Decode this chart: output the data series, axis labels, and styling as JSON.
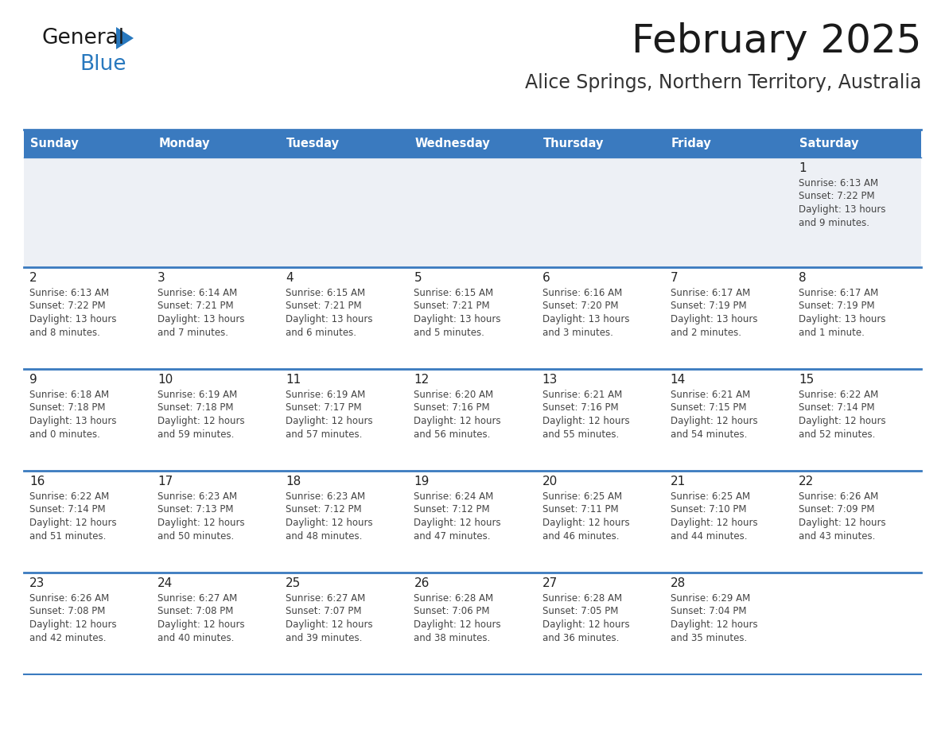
{
  "title": "February 2025",
  "subtitle": "Alice Springs, Northern Territory, Australia",
  "days_of_week": [
    "Sunday",
    "Monday",
    "Tuesday",
    "Wednesday",
    "Thursday",
    "Friday",
    "Saturday"
  ],
  "header_bg": "#3a7abf",
  "header_text": "#ffffff",
  "row0_bg": "#edf0f5",
  "row_bg_white": "#ffffff",
  "border_color": "#3a7abf",
  "cell_text_color": "#444444",
  "day_num_color": "#222222",
  "title_color": "#1a1a1a",
  "subtitle_color": "#333333",
  "calendar_data": [
    {
      "day": 1,
      "col": 6,
      "row": 0,
      "sunrise": "6:13 AM",
      "sunset": "7:22 PM",
      "daylight_h": "13 hours",
      "daylight_m": "and 9 minutes."
    },
    {
      "day": 2,
      "col": 0,
      "row": 1,
      "sunrise": "6:13 AM",
      "sunset": "7:22 PM",
      "daylight_h": "13 hours",
      "daylight_m": "and 8 minutes."
    },
    {
      "day": 3,
      "col": 1,
      "row": 1,
      "sunrise": "6:14 AM",
      "sunset": "7:21 PM",
      "daylight_h": "13 hours",
      "daylight_m": "and 7 minutes."
    },
    {
      "day": 4,
      "col": 2,
      "row": 1,
      "sunrise": "6:15 AM",
      "sunset": "7:21 PM",
      "daylight_h": "13 hours",
      "daylight_m": "and 6 minutes."
    },
    {
      "day": 5,
      "col": 3,
      "row": 1,
      "sunrise": "6:15 AM",
      "sunset": "7:21 PM",
      "daylight_h": "13 hours",
      "daylight_m": "and 5 minutes."
    },
    {
      "day": 6,
      "col": 4,
      "row": 1,
      "sunrise": "6:16 AM",
      "sunset": "7:20 PM",
      "daylight_h": "13 hours",
      "daylight_m": "and 3 minutes."
    },
    {
      "day": 7,
      "col": 5,
      "row": 1,
      "sunrise": "6:17 AM",
      "sunset": "7:19 PM",
      "daylight_h": "13 hours",
      "daylight_m": "and 2 minutes."
    },
    {
      "day": 8,
      "col": 6,
      "row": 1,
      "sunrise": "6:17 AM",
      "sunset": "7:19 PM",
      "daylight_h": "13 hours",
      "daylight_m": "and 1 minute."
    },
    {
      "day": 9,
      "col": 0,
      "row": 2,
      "sunrise": "6:18 AM",
      "sunset": "7:18 PM",
      "daylight_h": "13 hours",
      "daylight_m": "and 0 minutes."
    },
    {
      "day": 10,
      "col": 1,
      "row": 2,
      "sunrise": "6:19 AM",
      "sunset": "7:18 PM",
      "daylight_h": "12 hours",
      "daylight_m": "and 59 minutes."
    },
    {
      "day": 11,
      "col": 2,
      "row": 2,
      "sunrise": "6:19 AM",
      "sunset": "7:17 PM",
      "daylight_h": "12 hours",
      "daylight_m": "and 57 minutes."
    },
    {
      "day": 12,
      "col": 3,
      "row": 2,
      "sunrise": "6:20 AM",
      "sunset": "7:16 PM",
      "daylight_h": "12 hours",
      "daylight_m": "and 56 minutes."
    },
    {
      "day": 13,
      "col": 4,
      "row": 2,
      "sunrise": "6:21 AM",
      "sunset": "7:16 PM",
      "daylight_h": "12 hours",
      "daylight_m": "and 55 minutes."
    },
    {
      "day": 14,
      "col": 5,
      "row": 2,
      "sunrise": "6:21 AM",
      "sunset": "7:15 PM",
      "daylight_h": "12 hours",
      "daylight_m": "and 54 minutes."
    },
    {
      "day": 15,
      "col": 6,
      "row": 2,
      "sunrise": "6:22 AM",
      "sunset": "7:14 PM",
      "daylight_h": "12 hours",
      "daylight_m": "and 52 minutes."
    },
    {
      "day": 16,
      "col": 0,
      "row": 3,
      "sunrise": "6:22 AM",
      "sunset": "7:14 PM",
      "daylight_h": "12 hours",
      "daylight_m": "and 51 minutes."
    },
    {
      "day": 17,
      "col": 1,
      "row": 3,
      "sunrise": "6:23 AM",
      "sunset": "7:13 PM",
      "daylight_h": "12 hours",
      "daylight_m": "and 50 minutes."
    },
    {
      "day": 18,
      "col": 2,
      "row": 3,
      "sunrise": "6:23 AM",
      "sunset": "7:12 PM",
      "daylight_h": "12 hours",
      "daylight_m": "and 48 minutes."
    },
    {
      "day": 19,
      "col": 3,
      "row": 3,
      "sunrise": "6:24 AM",
      "sunset": "7:12 PM",
      "daylight_h": "12 hours",
      "daylight_m": "and 47 minutes."
    },
    {
      "day": 20,
      "col": 4,
      "row": 3,
      "sunrise": "6:25 AM",
      "sunset": "7:11 PM",
      "daylight_h": "12 hours",
      "daylight_m": "and 46 minutes."
    },
    {
      "day": 21,
      "col": 5,
      "row": 3,
      "sunrise": "6:25 AM",
      "sunset": "7:10 PM",
      "daylight_h": "12 hours",
      "daylight_m": "and 44 minutes."
    },
    {
      "day": 22,
      "col": 6,
      "row": 3,
      "sunrise": "6:26 AM",
      "sunset": "7:09 PM",
      "daylight_h": "12 hours",
      "daylight_m": "and 43 minutes."
    },
    {
      "day": 23,
      "col": 0,
      "row": 4,
      "sunrise": "6:26 AM",
      "sunset": "7:08 PM",
      "daylight_h": "12 hours",
      "daylight_m": "and 42 minutes."
    },
    {
      "day": 24,
      "col": 1,
      "row": 4,
      "sunrise": "6:27 AM",
      "sunset": "7:08 PM",
      "daylight_h": "12 hours",
      "daylight_m": "and 40 minutes."
    },
    {
      "day": 25,
      "col": 2,
      "row": 4,
      "sunrise": "6:27 AM",
      "sunset": "7:07 PM",
      "daylight_h": "12 hours",
      "daylight_m": "and 39 minutes."
    },
    {
      "day": 26,
      "col": 3,
      "row": 4,
      "sunrise": "6:28 AM",
      "sunset": "7:06 PM",
      "daylight_h": "12 hours",
      "daylight_m": "and 38 minutes."
    },
    {
      "day": 27,
      "col": 4,
      "row": 4,
      "sunrise": "6:28 AM",
      "sunset": "7:05 PM",
      "daylight_h": "12 hours",
      "daylight_m": "and 36 minutes."
    },
    {
      "day": 28,
      "col": 5,
      "row": 4,
      "sunrise": "6:29 AM",
      "sunset": "7:04 PM",
      "daylight_h": "12 hours",
      "daylight_m": "and 35 minutes."
    }
  ],
  "num_rows": 5,
  "logo_general_color": "#1a1a1a",
  "logo_blue_color": "#2878be",
  "logo_triangle_color": "#2878be"
}
